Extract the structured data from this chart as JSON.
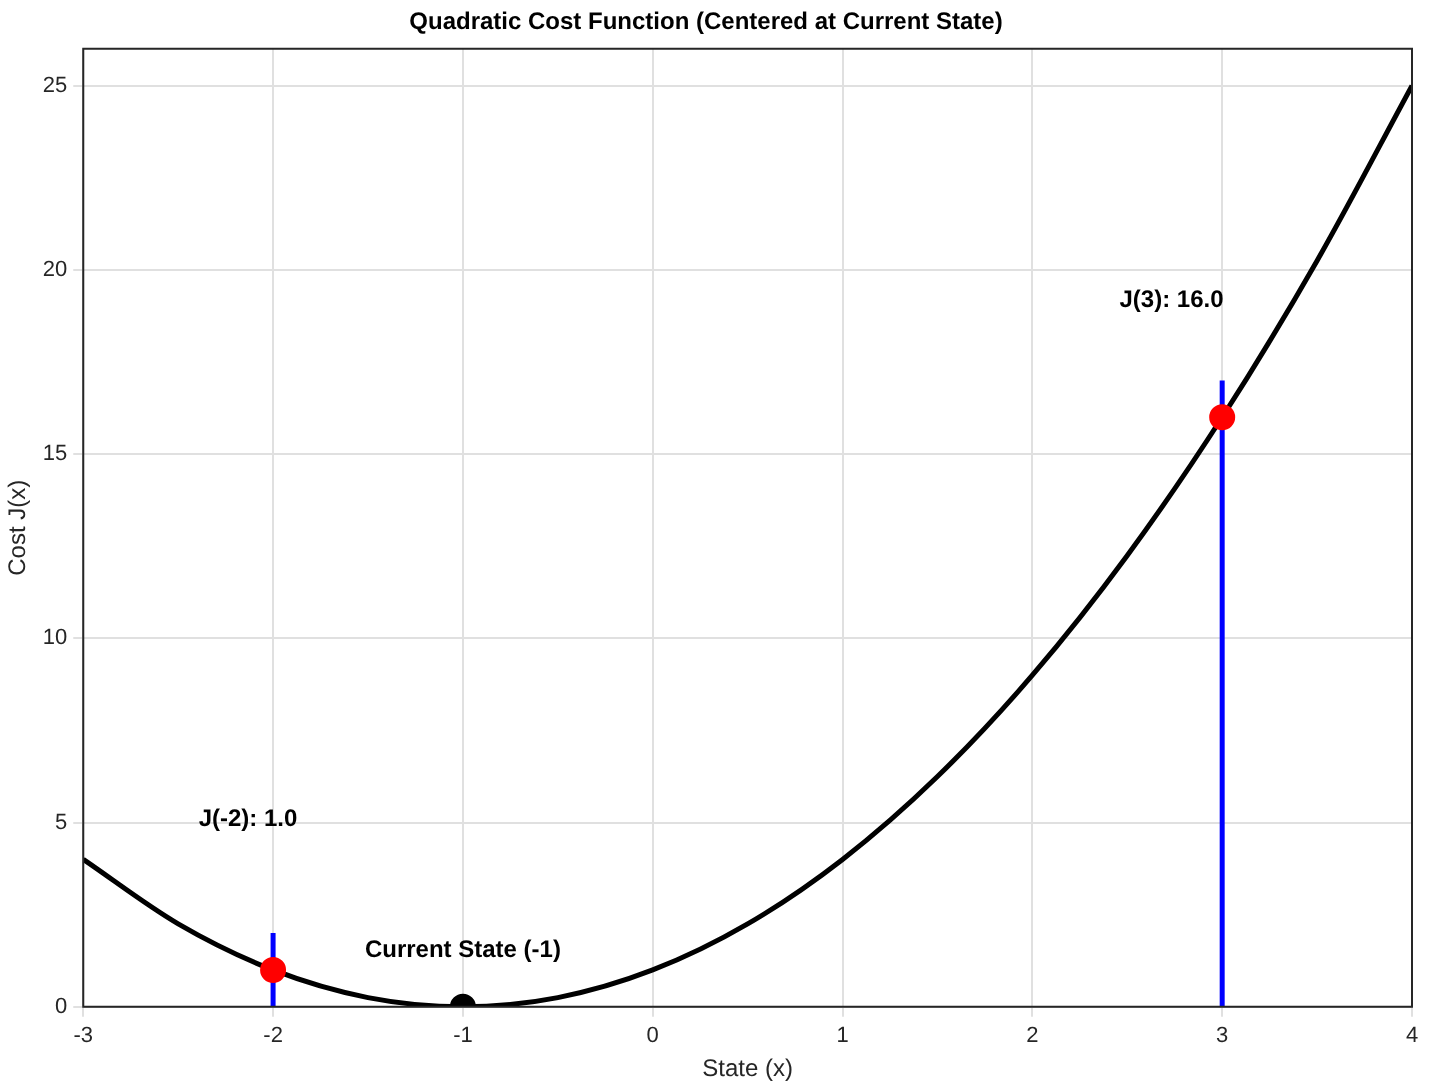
{
  "chart_data": {
    "type": "line",
    "title": "Quadratic Cost Function (Centered at Current State)",
    "xlabel": "State (x)",
    "ylabel": "Cost J(x)",
    "series": [
      {
        "color": "#000000",
        "marker": "none",
        "x": [
          -3,
          -2.5,
          -2,
          -1.5,
          -1,
          -0.5,
          0,
          0.5,
          1,
          1.5,
          2,
          2.5,
          3,
          3.5,
          4
        ],
        "values": [
          4,
          2.25,
          1,
          0.25,
          0,
          0.25,
          1,
          2.25,
          4,
          6.25,
          9,
          12.25,
          16,
          20.25,
          25
        ]
      },
      {
        "type": "line",
        "color": "#0000ff",
        "marker": "none",
        "x": [
          -2,
          -2
        ],
        "values": [
          0,
          2
        ]
      },
      {
        "type": "line",
        "color": "#0000ff",
        "marker": "none",
        "x": [
          3,
          3
        ],
        "values": [
          0,
          17
        ]
      },
      {
        "type": "scatter",
        "color": "#ff0000",
        "marker": "circle",
        "x": [
          -2,
          3
        ],
        "values": [
          1,
          16
        ]
      },
      {
        "type": "scatter",
        "color": "#000000",
        "marker": "circle",
        "x": [
          -1
        ],
        "values": [
          0
        ]
      }
    ],
    "xlim": [
      -3,
      4
    ],
    "xticks": [
      -3,
      -2,
      -1,
      0,
      1,
      2,
      3,
      4
    ],
    "ylim": [
      0,
      26
    ],
    "yticks": [
      0,
      5,
      10,
      15,
      20,
      25
    ],
    "grid": true,
    "legend": false,
    "annotations": [
      "J(-2): 1.0",
      "J(3): 16.0",
      {
        "text": "Current State (-1)",
        "x": -1,
        "y": 0
      }
    ]
  }
}
